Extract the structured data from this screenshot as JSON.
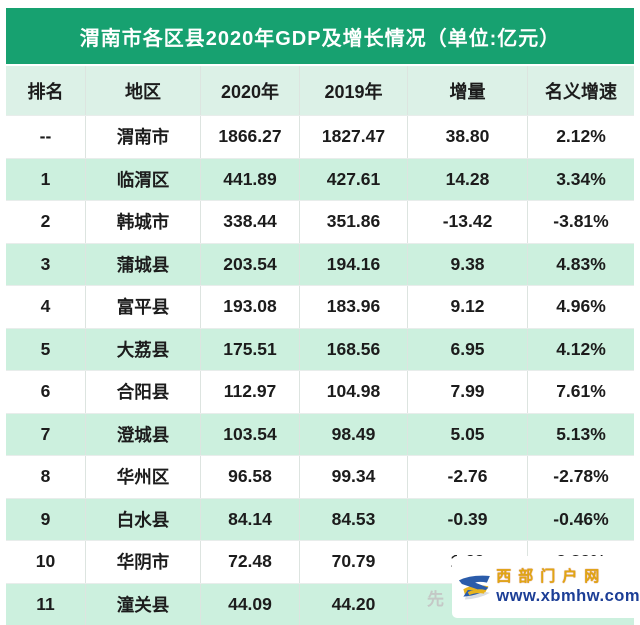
{
  "title": "渭南市各区县2020年GDP及增长情况（单位:亿元）",
  "colors": {
    "title_bar_green": "#17a170",
    "header_row_bg": "#dcf1e7",
    "alt_row_bg": "#ccf0de",
    "watermark_gold": "#e0a712",
    "watermark_blue": "#1c3e96"
  },
  "table": {
    "headers": [
      "排名",
      "地区",
      "2020年",
      "2019年",
      "增量",
      "名义增速"
    ],
    "rows": [
      [
        "--",
        "渭南市",
        "1866.27",
        "1827.47",
        "38.80",
        "2.12%"
      ],
      [
        "1",
        "临渭区",
        "441.89",
        "427.61",
        "14.28",
        "3.34%"
      ],
      [
        "2",
        "韩城市",
        "338.44",
        "351.86",
        "-13.42",
        "-3.81%"
      ],
      [
        "3",
        "蒲城县",
        "203.54",
        "194.16",
        "9.38",
        "4.83%"
      ],
      [
        "4",
        "富平县",
        "193.08",
        "183.96",
        "9.12",
        "4.96%"
      ],
      [
        "5",
        "大荔县",
        "175.51",
        "168.56",
        "6.95",
        "4.12%"
      ],
      [
        "6",
        "合阳县",
        "112.97",
        "104.98",
        "7.99",
        "7.61%"
      ],
      [
        "7",
        "澄城县",
        "103.54",
        "98.49",
        "5.05",
        "5.13%"
      ],
      [
        "8",
        "华州区",
        "96.58",
        "99.34",
        "-2.76",
        "-2.78%"
      ],
      [
        "9",
        "白水县",
        "84.14",
        "84.53",
        "-0.39",
        "-0.46%"
      ],
      [
        "10",
        "华阴市",
        "72.48",
        "70.79",
        "1.69",
        "2.39%"
      ],
      [
        "11",
        "潼关县",
        "44.09",
        "44.20",
        "",
        ""
      ]
    ]
  },
  "watermark": {
    "site_name": "西部门户网",
    "site_url": "www.xbmhw.com",
    "logo": "xbmhw-logo"
  },
  "faint_text": "先",
  "chart_data": {
    "type": "table",
    "title": "渭南市各区县2020年GDP及增长情况（单位:亿元）",
    "columns": [
      "排名",
      "地区",
      "2020年",
      "2019年",
      "增量",
      "名义增速"
    ],
    "rows": [
      [
        "--",
        "渭南市",
        1866.27,
        1827.47,
        38.8,
        "2.12%"
      ],
      [
        1,
        "临渭区",
        441.89,
        427.61,
        14.28,
        "3.34%"
      ],
      [
        2,
        "韩城市",
        338.44,
        351.86,
        -13.42,
        "-3.81%"
      ],
      [
        3,
        "蒲城县",
        203.54,
        194.16,
        9.38,
        "4.83%"
      ],
      [
        4,
        "富平县",
        193.08,
        183.96,
        9.12,
        "4.96%"
      ],
      [
        5,
        "大荔县",
        175.51,
        168.56,
        6.95,
        "4.12%"
      ],
      [
        6,
        "合阳县",
        112.97,
        104.98,
        7.99,
        "7.61%"
      ],
      [
        7,
        "澄城县",
        103.54,
        98.49,
        5.05,
        "5.13%"
      ],
      [
        8,
        "华州区",
        96.58,
        99.34,
        -2.76,
        "-2.78%"
      ],
      [
        9,
        "白水县",
        84.14,
        84.53,
        -0.39,
        "-0.46%"
      ],
      [
        10,
        "华阴市",
        72.48,
        70.79,
        1.69,
        "2.39%"
      ],
      [
        11,
        "潼关县",
        44.09,
        44.2,
        null,
        null
      ]
    ]
  }
}
